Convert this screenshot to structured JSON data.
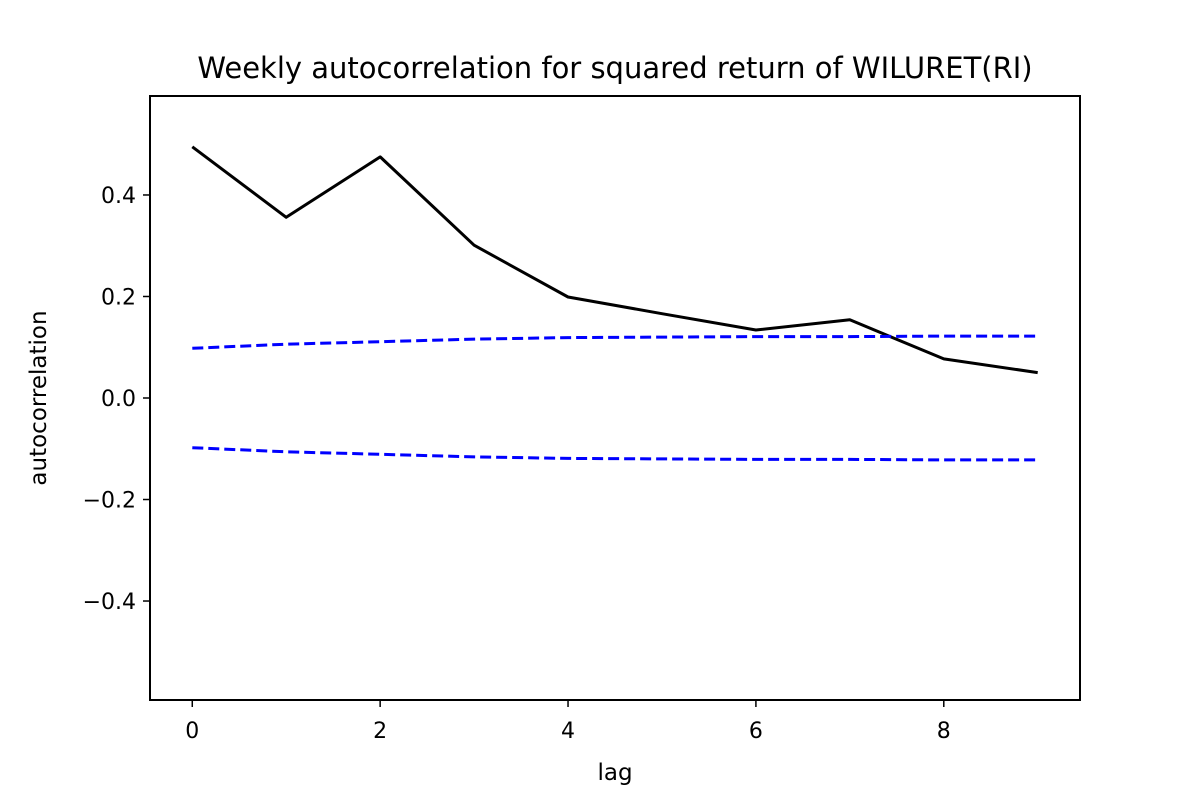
{
  "chart_data": {
    "type": "line",
    "title": "Weekly autocorrelation for squared return of WILURET(RI)",
    "xlabel": "lag",
    "ylabel": "autocorrelation",
    "x": [
      0,
      1,
      2,
      3,
      4,
      5,
      6,
      7,
      8,
      9
    ],
    "xlim": [
      -0.45,
      9.45
    ],
    "ylim": [
      -0.595,
      0.595
    ],
    "xticks": [
      0,
      2,
      4,
      6,
      8
    ],
    "yticks": [
      -0.4,
      -0.2,
      0.0,
      0.2,
      0.4
    ],
    "xtick_labels": [
      "0",
      "2",
      "4",
      "6",
      "8"
    ],
    "ytick_labels": [
      "−0.4",
      "−0.2",
      "0.0",
      "0.2",
      "0.4"
    ],
    "grid": false,
    "series": [
      {
        "style": "solid",
        "color": "#000000",
        "values": [
          0.495,
          0.356,
          0.475,
          0.301,
          0.199,
          0.166,
          0.134,
          0.154,
          0.077,
          0.05
        ]
      },
      {
        "style": "dashed",
        "color": "#0000ff",
        "values": [
          0.098,
          0.106,
          0.111,
          0.116,
          0.119,
          0.12,
          0.121,
          0.121,
          0.122,
          0.122
        ]
      },
      {
        "style": "dashed",
        "color": "#0000ff",
        "values": [
          -0.098,
          -0.106,
          -0.111,
          -0.116,
          -0.119,
          -0.12,
          -0.121,
          -0.121,
          -0.122,
          -0.122
        ]
      }
    ]
  }
}
